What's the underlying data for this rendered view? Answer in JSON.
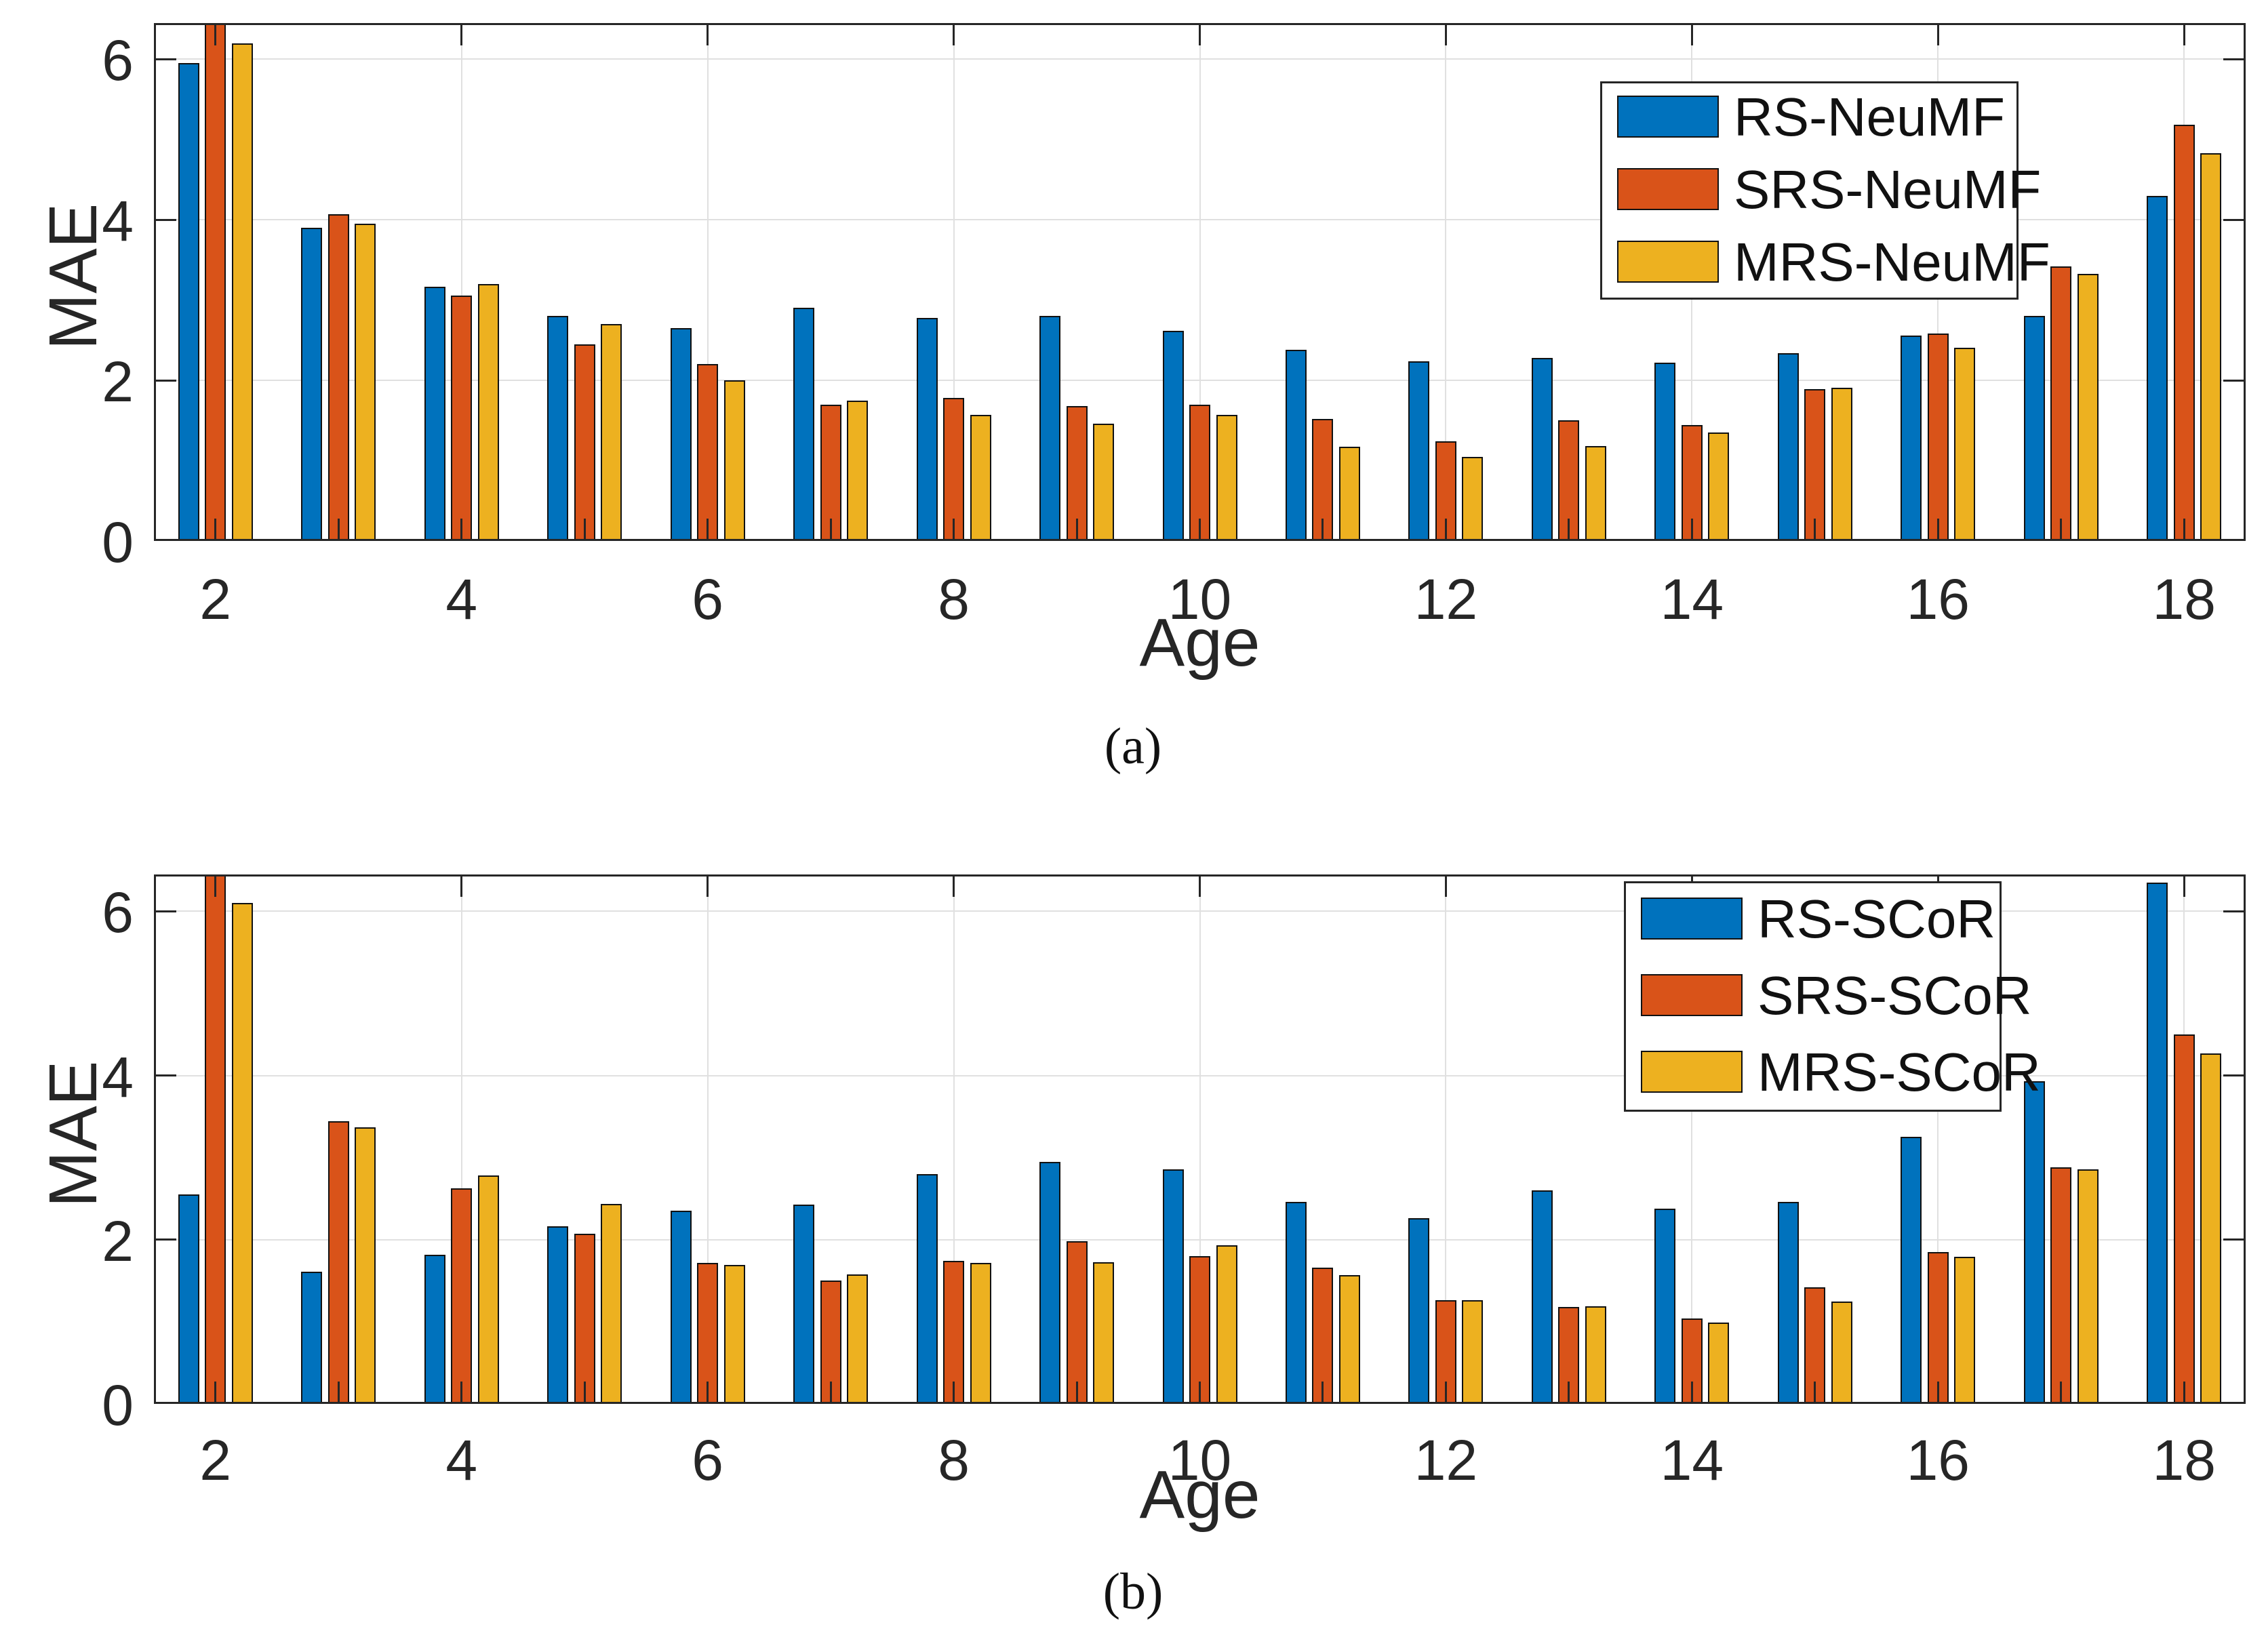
{
  "figure": {
    "background": "#ffffff",
    "axis_color": "#262626",
    "grid_color": "#e0e0e0"
  },
  "palette": {
    "blue": "#0072BD",
    "orange": "#D95319",
    "yellow": "#EDB120"
  },
  "chart_data": [
    {
      "type": "bar",
      "panel": "(a)",
      "xlabel": "Age",
      "ylabel": "MAE",
      "xlim": [
        1.5,
        18.5
      ],
      "ylim": [
        0,
        6.45
      ],
      "yticks": [
        0,
        2,
        4,
        6
      ],
      "xticks": [
        2,
        4,
        6,
        8,
        10,
        12,
        14,
        16,
        18
      ],
      "grid": true,
      "legend_position": "top-right",
      "categories": [
        2,
        3,
        4,
        5,
        6,
        7,
        8,
        9,
        10,
        11,
        12,
        13,
        14,
        15,
        16,
        17,
        18
      ],
      "series": [
        {
          "name": "RS-NeuMF",
          "color": "#0072BD",
          "values": [
            5.95,
            3.9,
            3.17,
            2.8,
            2.65,
            2.9,
            2.78,
            2.8,
            2.62,
            2.38,
            2.24,
            2.28,
            2.22,
            2.34,
            2.56,
            2.8,
            4.3
          ]
        },
        {
          "name": "SRS-NeuMF",
          "color": "#D95319",
          "values": [
            6.5,
            4.07,
            3.06,
            2.45,
            2.2,
            1.7,
            1.78,
            1.68,
            1.7,
            1.52,
            1.24,
            1.5,
            1.44,
            1.89,
            2.58,
            3.42,
            5.18
          ]
        },
        {
          "name": "MRS-NeuMF",
          "color": "#EDB120",
          "values": [
            6.2,
            3.95,
            3.2,
            2.7,
            2.0,
            1.75,
            1.57,
            1.46,
            1.57,
            1.17,
            1.05,
            1.18,
            1.35,
            1.91,
            2.41,
            3.33,
            4.83
          ]
        }
      ]
    },
    {
      "type": "bar",
      "panel": "(b)",
      "xlabel": "Age",
      "ylabel": "MAE",
      "xlim": [
        1.5,
        18.5
      ],
      "ylim": [
        0,
        6.45
      ],
      "yticks": [
        0,
        2,
        4,
        6
      ],
      "xticks": [
        2,
        4,
        6,
        8,
        10,
        12,
        14,
        16,
        18
      ],
      "grid": true,
      "legend_position": "top-right",
      "categories": [
        2,
        3,
        4,
        5,
        6,
        7,
        8,
        9,
        10,
        11,
        12,
        13,
        14,
        15,
        16,
        17,
        18
      ],
      "series": [
        {
          "name": "RS-SCoR",
          "color": "#0072BD",
          "values": [
            2.55,
            1.61,
            1.82,
            2.16,
            2.35,
            2.43,
            2.8,
            2.95,
            2.86,
            2.46,
            2.26,
            2.6,
            2.38,
            2.46,
            3.25,
            3.93,
            6.35
          ]
        },
        {
          "name": "SRS-SCoR",
          "color": "#D95319",
          "values": [
            6.5,
            3.44,
            2.63,
            2.07,
            1.72,
            1.5,
            1.74,
            1.98,
            1.8,
            1.66,
            1.26,
            1.18,
            1.04,
            1.42,
            1.85,
            2.88,
            4.5
          ]
        },
        {
          "name": "MRS-SCoR",
          "color": "#EDB120",
          "values": [
            6.1,
            3.37,
            2.78,
            2.44,
            1.69,
            1.58,
            1.72,
            1.73,
            1.93,
            1.57,
            1.26,
            1.19,
            0.99,
            1.25,
            1.79,
            2.86,
            4.27
          ]
        }
      ]
    }
  ]
}
